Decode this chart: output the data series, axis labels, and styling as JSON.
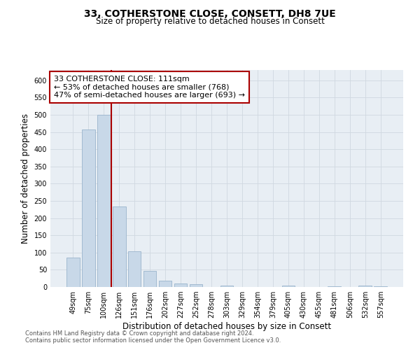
{
  "title": "33, COTHERSTONE CLOSE, CONSETT, DH8 7UE",
  "subtitle": "Size of property relative to detached houses in Consett",
  "xlabel": "Distribution of detached houses by size in Consett",
  "ylabel": "Number of detached properties",
  "bar_labels": [
    "49sqm",
    "75sqm",
    "100sqm",
    "126sqm",
    "151sqm",
    "176sqm",
    "202sqm",
    "227sqm",
    "252sqm",
    "278sqm",
    "303sqm",
    "329sqm",
    "354sqm",
    "379sqm",
    "405sqm",
    "430sqm",
    "455sqm",
    "481sqm",
    "506sqm",
    "532sqm",
    "557sqm"
  ],
  "bar_values": [
    85,
    457,
    500,
    233,
    103,
    46,
    19,
    11,
    8,
    0,
    5,
    0,
    0,
    0,
    4,
    0,
    0,
    3,
    0,
    4,
    3
  ],
  "bar_color": "#c8d8e8",
  "bar_edgecolor": "#9ab4cc",
  "vline_color": "#aa0000",
  "annotation_text": "33 COTHERSTONE CLOSE: 111sqm\n← 53% of detached houses are smaller (768)\n47% of semi-detached houses are larger (693) →",
  "annotation_boxcolor": "white",
  "annotation_edgecolor": "#aa0000",
  "ylim": [
    0,
    630
  ],
  "yticks": [
    0,
    50,
    100,
    150,
    200,
    250,
    300,
    350,
    400,
    450,
    500,
    550,
    600
  ],
  "footer_line1": "Contains HM Land Registry data © Crown copyright and database right 2024.",
  "footer_line2": "Contains public sector information licensed under the Open Government Licence v3.0.",
  "bg_color": "#e8eef4",
  "grid_color": "#d0d8e0",
  "title_fontsize": 10,
  "subtitle_fontsize": 8.5,
  "tick_fontsize": 7,
  "axis_label_fontsize": 8.5,
  "footer_fontsize": 6,
  "annotation_fontsize": 8
}
